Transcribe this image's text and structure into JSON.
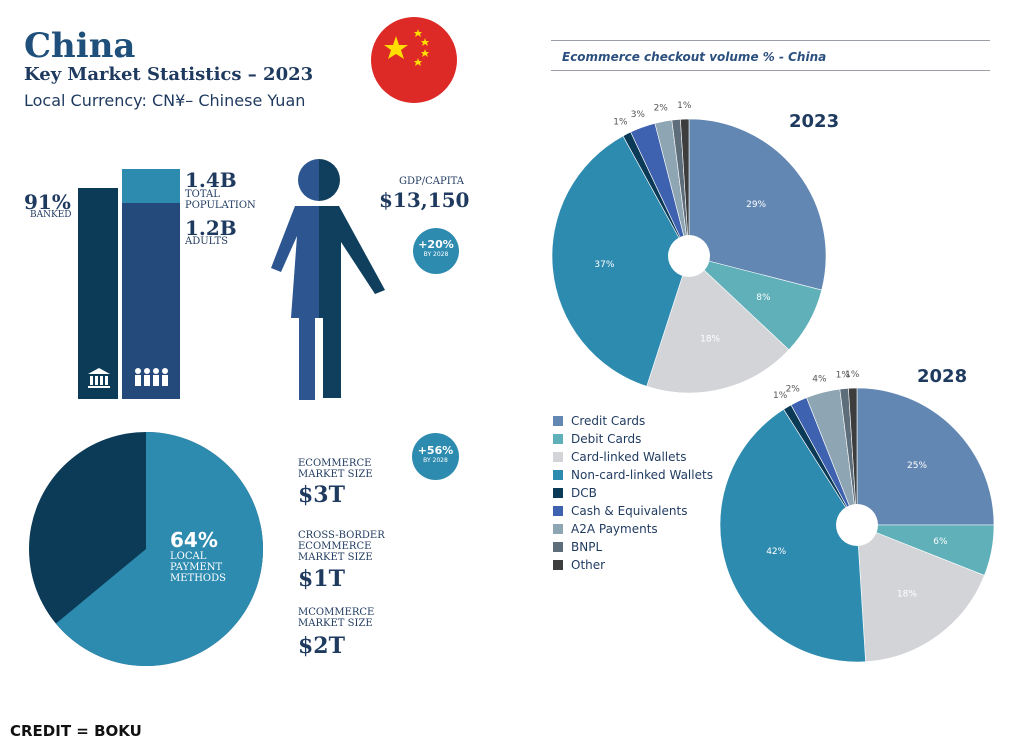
{
  "header": {
    "country": "China",
    "subtitle": "Key Market Statistics – 2023",
    "currency": "Local Currency: CN¥– Chinese Yuan"
  },
  "banking": {
    "banked_pct": "91%",
    "banked_label": "BANKED",
    "total_population": "1.4B",
    "total_population_label": "TOTAL POPULATION",
    "adults": "1.2B",
    "adults_label": "ADULTS",
    "banked_fraction": 0.91
  },
  "gdp": {
    "label": "GDP/CAPITA",
    "value": "$13,150",
    "growth": "+20%",
    "growth_note": "BY 2028"
  },
  "ecommerce": {
    "growth": "+56%",
    "growth_note": "BY 2028",
    "market_label": "ECOMMERCE MARKET SIZE",
    "market_value": "$3T",
    "cross_border_label": "CROSS-BORDER ECOMMERCE MARKET SIZE",
    "cross_border_value": "$1T",
    "mcommerce_label": "MCOMMERCE MARKET SIZE",
    "mcommerce_value": "$2T"
  },
  "local_payment": {
    "pct": "64%",
    "label": "LOCAL PAYMENT METHODS",
    "fraction": 0.64
  },
  "checkout_chart_title": "Ecommerce checkout volume % - China",
  "credit": "CREDIT = BOKU",
  "colors": {
    "Credit Cards": "#6387b3",
    "Debit Cards": "#5fb0b9",
    "Card-linked Wallets": "#d3d4d8",
    "Non-card-linked Wallets": "#2e8bb0",
    "DCB": "#0b3a57",
    "Cash & Equivalents": "#3f62b0",
    "A2A Payments": "#8ea6b4",
    "BNPL": "#5e6d7a",
    "Other": "#3d3d3d"
  },
  "chart_data": [
    {
      "type": "pie",
      "title": "2023",
      "categories": [
        "Credit Cards",
        "Debit Cards",
        "Card-linked Wallets",
        "Non-card-linked Wallets",
        "DCB",
        "Cash & Equivalents",
        "A2A Payments",
        "BNPL",
        "Other"
      ],
      "values": [
        29,
        8,
        18,
        37,
        1,
        3,
        2,
        1,
        1
      ],
      "labels": [
        "29%",
        "8%",
        "18%",
        "37%",
        "1%",
        "3%",
        "2%",
        "",
        "1%"
      ]
    },
    {
      "type": "pie",
      "title": "2028",
      "categories": [
        "Credit Cards",
        "Debit Cards",
        "Card-linked Wallets",
        "Non-card-linked Wallets",
        "DCB",
        "Cash & Equivalents",
        "A2A Payments",
        "BNPL",
        "Other"
      ],
      "values": [
        25,
        6,
        18,
        42,
        1,
        2,
        4,
        1,
        1
      ],
      "labels": [
        "25%",
        "6%",
        "18%",
        "42%",
        "1%",
        "2%",
        "4%",
        "1%",
        "1%"
      ]
    }
  ]
}
